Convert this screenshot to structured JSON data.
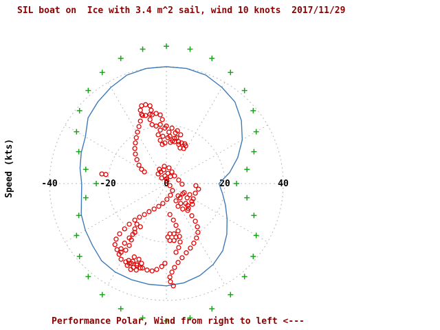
{
  "chart_data": {
    "type": "scatter",
    "polar": true,
    "title": "SIL boat on  Ice with 3.4 m^2 sail, wind 10 knots  2017/11/29",
    "ylabel": "Speed (kts)",
    "xlabel": "",
    "caption": "Performance Polar, Wind from right to left <---",
    "axis_ticks": [
      -40,
      -20,
      0,
      20,
      40
    ],
    "grid_circles": [
      20,
      40
    ],
    "spoke_step_deg": 30,
    "xlim": [
      -47,
      47
    ],
    "legend": "none",
    "colors": {
      "grid": "#b8b8b8",
      "limit_curve": "#19a319",
      "theoretical_polar": "#3d7ab5",
      "measured": "#e00000",
      "title": "#8b0000",
      "ticks": "#000000"
    },
    "series": [
      {
        "name": "wind-limit-curve",
        "marker": "plus",
        "color": "#19a319",
        "points_polar": [
          [
            0,
            24
          ],
          [
            10,
            28
          ],
          [
            20,
            31.9
          ],
          [
            30,
            35.5
          ],
          [
            40,
            38.8
          ],
          [
            50,
            41.6
          ],
          [
            60,
            43.9
          ],
          [
            70,
            45.6
          ],
          [
            80,
            46.7
          ],
          [
            90,
            47
          ],
          [
            100,
            46.7
          ],
          [
            110,
            45.6
          ],
          [
            120,
            43.9
          ],
          [
            130,
            41.6
          ],
          [
            140,
            38.8
          ],
          [
            150,
            35.5
          ],
          [
            160,
            31.9
          ],
          [
            170,
            28
          ],
          [
            180,
            24
          ],
          [
            190,
            28
          ],
          [
            200,
            31.9
          ],
          [
            210,
            35.5
          ],
          [
            220,
            38.8
          ],
          [
            230,
            41.6
          ],
          [
            240,
            43.9
          ],
          [
            250,
            45.6
          ],
          [
            260,
            46.7
          ],
          [
            270,
            47
          ],
          [
            280,
            46.7
          ],
          [
            290,
            45.6
          ],
          [
            300,
            43.9
          ],
          [
            310,
            41.6
          ],
          [
            320,
            38.8
          ],
          [
            330,
            35.5
          ],
          [
            340,
            31.9
          ],
          [
            350,
            28
          ]
        ]
      },
      {
        "name": "theoretical-polar-curve",
        "type": "line",
        "color": "#3d7ab5",
        "points_polar": [
          [
            0,
            18
          ],
          [
            10,
            22
          ],
          [
            20,
            26
          ],
          [
            30,
            30
          ],
          [
            40,
            33.5
          ],
          [
            50,
            36.5
          ],
          [
            60,
            38
          ],
          [
            70,
            39.5
          ],
          [
            80,
            40
          ],
          [
            90,
            40
          ],
          [
            100,
            40
          ],
          [
            110,
            39.5
          ],
          [
            120,
            38
          ],
          [
            130,
            36.5
          ],
          [
            140,
            35
          ],
          [
            150,
            32
          ],
          [
            160,
            31
          ],
          [
            170,
            30
          ],
          [
            180,
            29
          ],
          [
            190,
            29.5
          ],
          [
            200,
            31
          ],
          [
            210,
            32
          ],
          [
            220,
            33
          ],
          [
            230,
            34.5
          ],
          [
            240,
            35
          ],
          [
            250,
            35
          ],
          [
            260,
            35
          ],
          [
            270,
            35
          ],
          [
            280,
            34.5
          ],
          [
            290,
            33.5
          ],
          [
            300,
            32
          ],
          [
            310,
            30
          ],
          [
            320,
            27
          ],
          [
            330,
            24
          ],
          [
            340,
            21.5
          ],
          [
            350,
            19.5
          ]
        ]
      },
      {
        "name": "measured-gps-points",
        "marker": "open-circle",
        "color": "#e00000",
        "points": [
          [
            -5.2,
            25.1
          ],
          [
            -5.6,
            23.7
          ],
          [
            -7.1,
            23.3
          ],
          [
            -8.5,
            23.7
          ],
          [
            -8.9,
            25.1
          ],
          [
            -8.5,
            26.6
          ],
          [
            -7.1,
            27.0
          ],
          [
            -5.6,
            26.6
          ],
          [
            -1.4,
            21.9
          ],
          [
            -2.1,
            20.2
          ],
          [
            -3.5,
            19.7
          ],
          [
            -4.9,
            20.2
          ],
          [
            -5.6,
            21.9
          ],
          [
            -4.9,
            23.5
          ],
          [
            -3.5,
            24.0
          ],
          [
            -2.1,
            23.5
          ],
          [
            0.0,
            19.7
          ],
          [
            1.9,
            19.0
          ],
          [
            3.1,
            17.4
          ],
          [
            2.8,
            15.5
          ],
          [
            1.4,
            14.1
          ],
          [
            -0.5,
            13.9
          ],
          [
            -2.1,
            14.8
          ],
          [
            -2.8,
            16.7
          ],
          [
            -2.1,
            18.3
          ],
          [
            -0.5,
            19.0
          ],
          [
            0.9,
            17.6
          ],
          [
            0.5,
            15.7
          ],
          [
            -1.2,
            16.2
          ],
          [
            1.2,
            16.2
          ],
          [
            2.1,
            14.6
          ],
          [
            -1.4,
            13.4
          ],
          [
            -8.2,
            23.3
          ],
          [
            -8.9,
            21.4
          ],
          [
            -9.4,
            19.5
          ],
          [
            -9.9,
            17.6
          ],
          [
            -10.3,
            15.7
          ],
          [
            -10.6,
            13.9
          ],
          [
            -10.8,
            12.0
          ],
          [
            -10.6,
            10.1
          ],
          [
            -10.1,
            8.2
          ],
          [
            -9.4,
            6.3
          ],
          [
            -8.5,
            4.9
          ],
          [
            -7.5,
            4.0
          ],
          [
            6.6,
            12.9
          ],
          [
            5.9,
            12.0
          ],
          [
            4.7,
            12.2
          ],
          [
            4.2,
            13.4
          ],
          [
            5.2,
            13.9
          ],
          [
            6.3,
            13.6
          ],
          [
            3.5,
            15.7
          ],
          [
            4.2,
            14.3
          ],
          [
            2.8,
            14.3
          ],
          [
            3.8,
            18.1
          ],
          [
            4.9,
            16.7
          ],
          [
            -0.7,
            5.9
          ],
          [
            0.9,
            5.4
          ],
          [
            1.9,
            4.0
          ],
          [
            1.4,
            2.4
          ],
          [
            0.0,
            1.6
          ],
          [
            -1.6,
            1.9
          ],
          [
            -2.8,
            3.3
          ],
          [
            -2.4,
            4.9
          ],
          [
            -0.9,
            4.7
          ],
          [
            0.5,
            3.5
          ],
          [
            -0.5,
            2.6
          ],
          [
            -1.9,
            4.0
          ],
          [
            2.8,
            2.6
          ],
          [
            4.2,
            1.2
          ],
          [
            5.4,
            -0.2
          ],
          [
            -22.1,
            3.3
          ],
          [
            -20.7,
            3.1
          ],
          [
            6.1,
            -3.1
          ],
          [
            8.0,
            -3.8
          ],
          [
            9.2,
            -5.2
          ],
          [
            8.9,
            -7.1
          ],
          [
            7.5,
            -8.5
          ],
          [
            5.6,
            -8.7
          ],
          [
            4.0,
            -7.8
          ],
          [
            3.3,
            -5.9
          ],
          [
            4.0,
            -4.2
          ],
          [
            5.6,
            -3.5
          ],
          [
            7.1,
            -4.9
          ],
          [
            6.6,
            -6.8
          ],
          [
            4.9,
            -6.8
          ],
          [
            7.3,
            -7.5
          ],
          [
            8.7,
            -6.1
          ],
          [
            4.7,
            -4.9
          ],
          [
            9.9,
            -3.3
          ],
          [
            11.0,
            -1.9
          ],
          [
            10.1,
            -0.7
          ],
          [
            0.2,
            0.9
          ],
          [
            1.2,
            -0.7
          ],
          [
            2.1,
            -2.4
          ],
          [
            1.4,
            -4.0
          ],
          [
            0.2,
            -5.4
          ],
          [
            -1.2,
            -6.8
          ],
          [
            -2.6,
            -7.8
          ],
          [
            -4.2,
            -8.7
          ],
          [
            -5.9,
            -9.6
          ],
          [
            -7.5,
            -10.6
          ],
          [
            -9.2,
            -11.5
          ],
          [
            -10.8,
            -12.5
          ],
          [
            -12.7,
            -13.9
          ],
          [
            -14.3,
            -15.5
          ],
          [
            -16.0,
            -17.2
          ],
          [
            -17.2,
            -19.0
          ],
          [
            -17.6,
            -20.9
          ],
          [
            -16.9,
            -22.6
          ],
          [
            -15.5,
            -23.5
          ],
          [
            -13.9,
            -22.8
          ],
          [
            -12.7,
            -21.2
          ],
          [
            -12.0,
            -19.3
          ],
          [
            -11.5,
            -17.4
          ],
          [
            -10.8,
            -15.5
          ],
          [
            -10.1,
            -13.9
          ],
          [
            -8.9,
            -14.8
          ],
          [
            -10.8,
            -16.7
          ],
          [
            -12.7,
            -18.6
          ],
          [
            -14.3,
            -20.4
          ],
          [
            -15.5,
            -22.3
          ],
          [
            -16.2,
            -24.2
          ],
          [
            -15.5,
            -25.9
          ],
          [
            -13.9,
            -26.8
          ],
          [
            -12.0,
            -27.3
          ],
          [
            -10.1,
            -27.5
          ],
          [
            -11.0,
            -25.1
          ],
          [
            -9.4,
            -25.9
          ],
          [
            -8.5,
            -27.3
          ],
          [
            -8.9,
            -28.9
          ],
          [
            -10.3,
            -29.6
          ],
          [
            -12.2,
            -29.4
          ],
          [
            -13.4,
            -28.0
          ],
          [
            -12.9,
            -26.3
          ],
          [
            -11.5,
            -26.6
          ],
          [
            -10.1,
            -28.0
          ],
          [
            -11.3,
            -28.7
          ],
          [
            -12.7,
            -27.3
          ],
          [
            -8.2,
            -28.9
          ],
          [
            -6.6,
            -29.6
          ],
          [
            -4.9,
            -29.9
          ],
          [
            -3.3,
            -29.4
          ],
          [
            -1.6,
            -28.4
          ],
          [
            -0.5,
            -27.3
          ],
          [
            7.3,
            -9.2
          ],
          [
            8.7,
            -11.0
          ],
          [
            9.9,
            -12.9
          ],
          [
            10.6,
            -14.8
          ],
          [
            10.8,
            -16.7
          ],
          [
            10.3,
            -18.6
          ],
          [
            9.4,
            -20.4
          ],
          [
            8.2,
            -22.1
          ],
          [
            6.8,
            -23.7
          ],
          [
            5.4,
            -25.4
          ],
          [
            4.0,
            -27.0
          ],
          [
            2.8,
            -28.7
          ],
          [
            1.9,
            -30.3
          ],
          [
            1.2,
            -32.0
          ],
          [
            1.4,
            -33.6
          ],
          [
            2.4,
            -35.0
          ],
          [
            1.2,
            -10.6
          ],
          [
            2.4,
            -12.5
          ],
          [
            3.3,
            -14.3
          ],
          [
            4.0,
            -16.2
          ],
          [
            4.5,
            -18.1
          ],
          [
            4.7,
            -20.0
          ],
          [
            4.2,
            -21.9
          ],
          [
            3.3,
            -23.5
          ],
          [
            3.3,
            -18.3
          ],
          [
            2.6,
            -19.5
          ],
          [
            1.2,
            -19.5
          ],
          [
            0.5,
            -18.3
          ],
          [
            1.2,
            -17.2
          ],
          [
            2.6,
            -17.2
          ]
        ]
      }
    ]
  }
}
